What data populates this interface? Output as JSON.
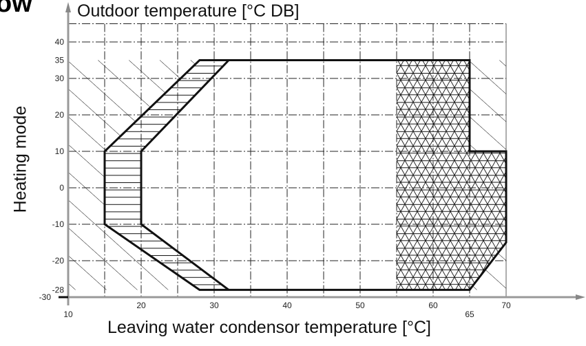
{
  "header_fragment": "ow",
  "chart_data": {
    "type": "area",
    "title": "Outdoor temperature [°C DB]",
    "ylabel": "Heating mode",
    "xlabel": "Leaving water condensor temperature [°C]",
    "xlim": [
      10,
      70
    ],
    "ylim": [
      -30,
      45
    ],
    "grid": true,
    "x_ticks": [
      10,
      20,
      30,
      40,
      50,
      60,
      65,
      70
    ],
    "y_ticks": [
      40,
      35,
      30,
      20,
      10,
      0,
      -10,
      -20,
      -28,
      -30
    ],
    "regions": [
      {
        "fill": "none",
        "outline": "bold",
        "points": [
          [
            15,
            -10
          ],
          [
            15,
            10
          ],
          [
            28,
            35
          ],
          [
            65,
            35
          ],
          [
            65,
            10
          ],
          [
            70,
            10
          ],
          [
            70,
            -15
          ],
          [
            65,
            -28
          ],
          [
            28,
            -28
          ]
        ]
      },
      {
        "fill": "horizontal-hatch",
        "points": [
          [
            15,
            -10
          ],
          [
            15,
            10
          ],
          [
            28,
            35
          ],
          [
            32,
            35
          ],
          [
            20,
            10
          ],
          [
            20,
            -10
          ],
          [
            32,
            -28
          ],
          [
            28,
            -28
          ]
        ]
      },
      {
        "fill": "cross-hatch",
        "points": [
          [
            55,
            35
          ],
          [
            65,
            35
          ],
          [
            65,
            10
          ],
          [
            70,
            10
          ],
          [
            70,
            -15
          ],
          [
            65,
            -28
          ],
          [
            55,
            -28
          ]
        ]
      },
      {
        "fill": "diagonal-hatch",
        "points": [
          [
            10,
            -28
          ],
          [
            28,
            -28
          ],
          [
            15,
            -10
          ],
          [
            15,
            10
          ],
          [
            28,
            35
          ],
          [
            10,
            35
          ]
        ]
      },
      {
        "fill": "diagonal-hatch",
        "points": [
          [
            65,
            35
          ],
          [
            70,
            35
          ],
          [
            70,
            10
          ],
          [
            65,
            10
          ]
        ]
      },
      {
        "fill": "diagonal-hatch",
        "points": [
          [
            65,
            -28
          ],
          [
            70,
            -15
          ],
          [
            70,
            -28
          ]
        ]
      }
    ]
  }
}
